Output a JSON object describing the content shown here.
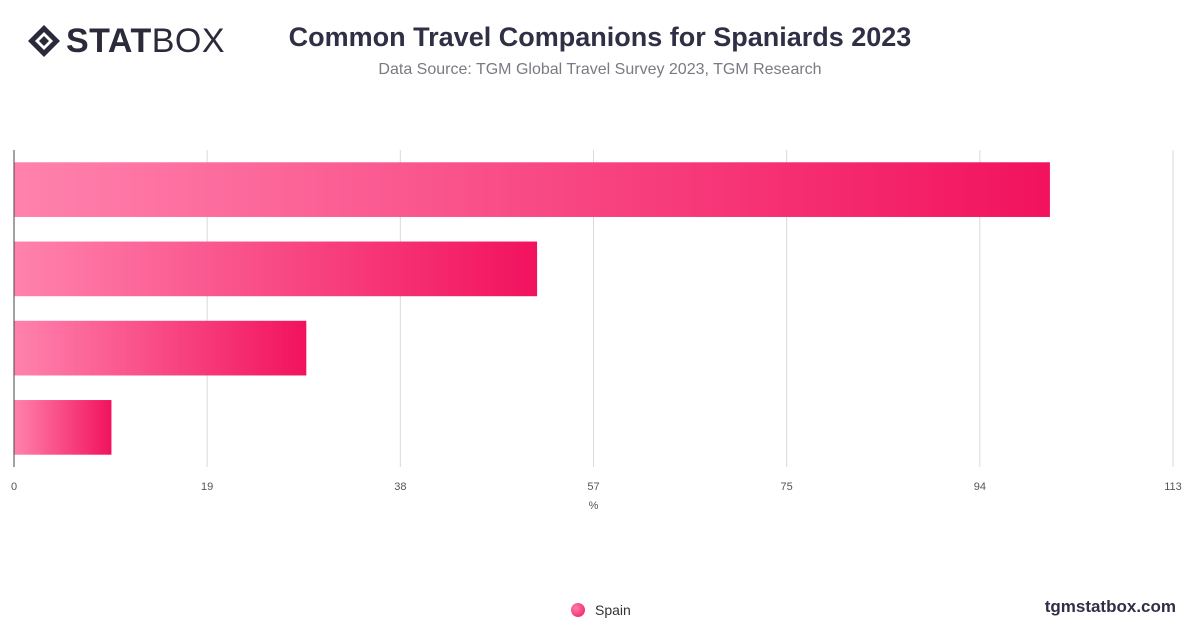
{
  "header": {
    "brand_bold": "STAT",
    "brand_light": "BOX",
    "logo_icon": "diamond-logo-icon",
    "title": "Common Travel Companions for Spaniards 2023",
    "subtitle": "Data Source: TGM Global Travel Survey 2023, TGM Research"
  },
  "footer": {
    "website": "tgmstatbox.com"
  },
  "colors": {
    "bar_light": "#ff82ad",
    "bar_dark": "#f2125e",
    "grid": "#d9d9d9",
    "text": "#2f3045"
  },
  "chart_data": {
    "type": "bar",
    "orientation": "horizontal",
    "title": "Common Travel Companions for Spaniards 2023",
    "xlabel": "%",
    "ylabel": "",
    "xlim": [
      0,
      113
    ],
    "xticks": [
      "0",
      "19",
      "38",
      "57",
      "75",
      "94",
      "113"
    ],
    "categories": [
      "",
      "",
      "",
      ""
    ],
    "series": [
      {
        "name": "Spain",
        "values": [
          101,
          51,
          28.5,
          9.5
        ]
      }
    ],
    "grid": true,
    "legend_position": "bottom-center"
  }
}
